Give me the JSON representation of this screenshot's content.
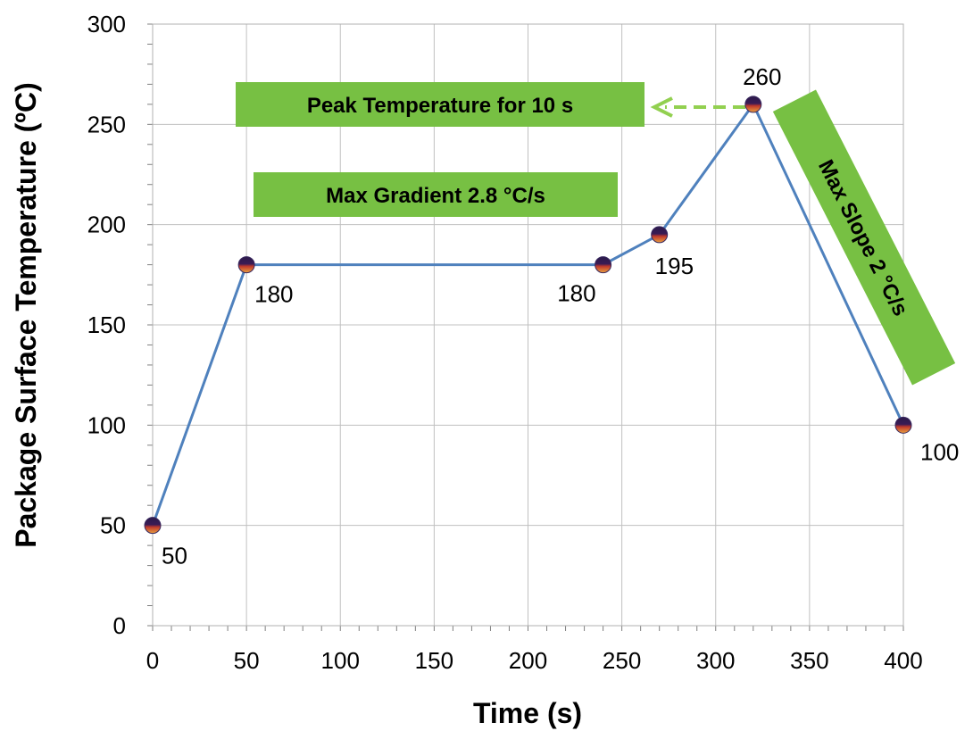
{
  "chart_data": {
    "type": "line",
    "xlabel": "Time (s)",
    "ylabel": "Package Surface Temperature  (ºC)",
    "xlim": [
      0,
      400
    ],
    "ylim": [
      0,
      300
    ],
    "x_ticks": [
      0,
      50,
      100,
      150,
      200,
      250,
      300,
      350,
      400
    ],
    "y_ticks": [
      0,
      50,
      100,
      150,
      200,
      250,
      300
    ],
    "grid": true,
    "series": [
      {
        "x": [
          0,
          50,
          240,
          270,
          320,
          400
        ],
        "y": [
          50,
          180,
          180,
          195,
          260,
          100
        ],
        "labels": [
          "50",
          "180",
          "180",
          "195",
          "260",
          "100"
        ]
      }
    ],
    "annotations": [
      "Peak Temperature for 10 s",
      "Max Gradient 2.8 °C/s",
      "Max Slope 2 °C/s"
    ],
    "colors": {
      "line": "#4f81bd",
      "annotation_fill": "#77c043",
      "arrow": "#92d050",
      "grid": "#c0c0c0"
    }
  }
}
